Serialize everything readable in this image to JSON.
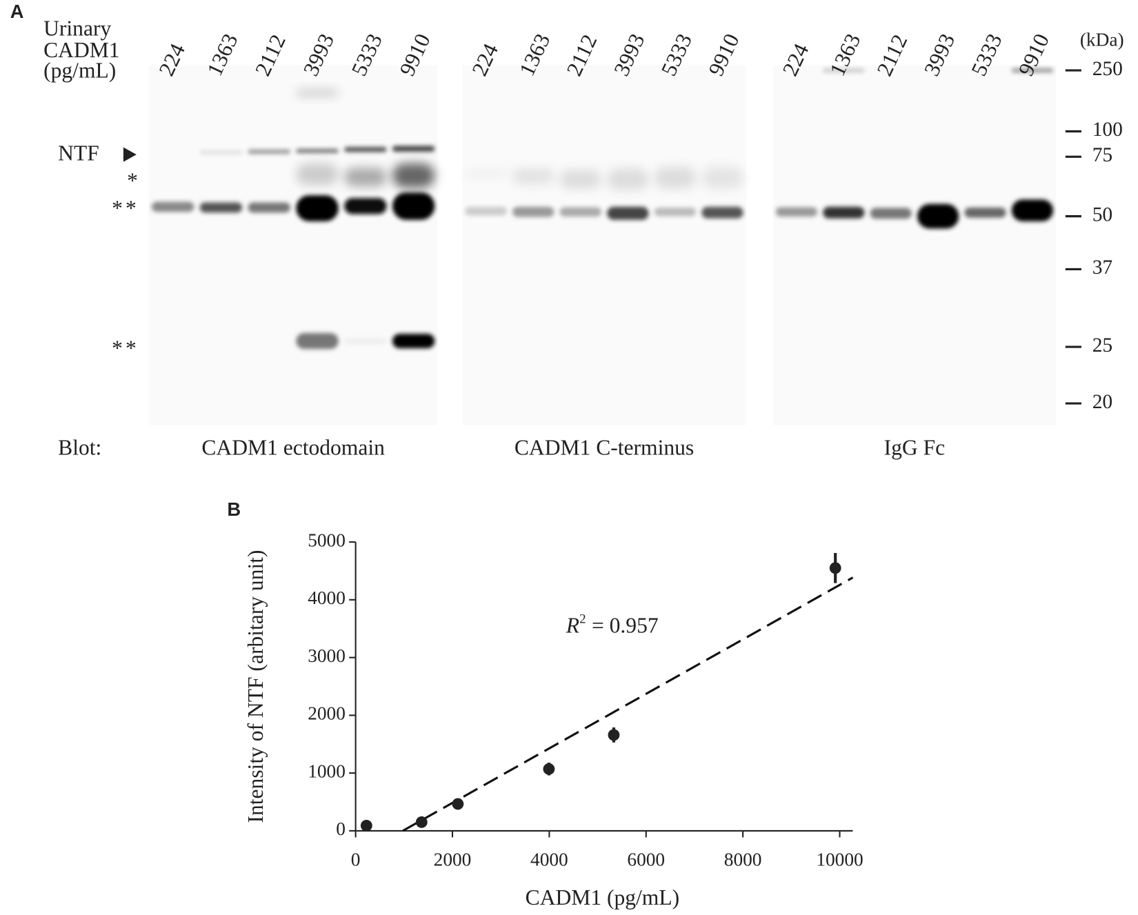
{
  "panel_a": {
    "letter": "A",
    "row_label": [
      "Urinary",
      "CADM1",
      "(pg/mL)"
    ],
    "blot_label": "Blot:",
    "blots": [
      {
        "name": "CADM1 ectodomain",
        "lanes": [
          "224",
          "1363",
          "2112",
          "3993",
          "5333",
          "9910"
        ]
      },
      {
        "name": "CADM1 C-terminus",
        "lanes": [
          "224",
          "1363",
          "2112",
          "3993",
          "5333",
          "9910"
        ]
      },
      {
        "name": "IgG Fc",
        "lanes": [
          "224",
          "1363",
          "2112",
          "3993",
          "5333",
          "9910"
        ]
      }
    ],
    "marker_unit": "(kDa)",
    "markers": [
      250,
      100,
      75,
      50,
      37,
      25,
      20
    ],
    "band_labels": [
      "NTF",
      "*",
      "**",
      "**"
    ]
  },
  "chart_data": {
    "type": "scatter",
    "letter": "B",
    "x_label": "CADM1 (pg/mL)",
    "y_label": "Intensity of NTF (arbitary unit)",
    "annotation": {
      "symbol": "R",
      "exponent": "2",
      "text": "= 0.957"
    },
    "x": [
      224,
      1363,
      2112,
      3993,
      5333,
      9910
    ],
    "values": [
      90,
      150,
      465,
      1070,
      1660,
      4550
    ],
    "errors": [
      50,
      50,
      50,
      110,
      130,
      260
    ],
    "color": "#222222",
    "trendline": {
      "x": [
        975,
        10270
      ],
      "y": [
        0,
        4385
      ],
      "color": "#111111"
    },
    "xlim": [
      0,
      10270
    ],
    "ylim": [
      0,
      5000
    ],
    "xticks": [
      0,
      2000,
      4000,
      6000,
      8000,
      10000
    ],
    "yticks": [
      0,
      1000,
      2000,
      3000,
      4000,
      5000
    ]
  }
}
